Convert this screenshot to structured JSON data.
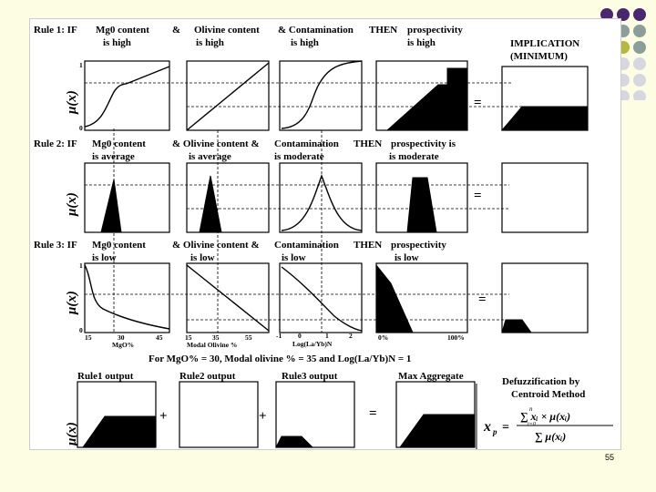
{
  "rules": [
    {
      "label": "Rule 1: IF",
      "a": [
        "Mg0 content",
        "is high"
      ],
      "b_amp": "&",
      "b": [
        "Olivine content",
        "is high"
      ],
      "c": [
        "& Contamination",
        "is high"
      ],
      "then": "THEN",
      "d": [
        "prospectivity",
        "is high"
      ]
    },
    {
      "label": "Rule 2: IF",
      "a": [
        "Mg0 content",
        "is average"
      ],
      "b": [
        "& Olivine content &",
        "is average"
      ],
      "c": [
        "Contamination",
        "is moderate"
      ],
      "then": "THEN",
      "d": [
        "prospectivity is",
        "is moderate"
      ]
    },
    {
      "label": "Rule 3: IF",
      "a": [
        "Mg0 content",
        "is low"
      ],
      "b": [
        "& Olivine content &",
        "is low"
      ],
      "c": [
        "Contamination",
        "is low"
      ],
      "then": "THEN",
      "d": [
        "prospectivity",
        "is low"
      ]
    }
  ],
  "implication": [
    "IMPLICATION",
    "(MINIMUM)"
  ],
  "mu": "μ(x)",
  "axis": {
    "y_top": "1",
    "y_bottom": "0",
    "mgo_ticks": [
      "15",
      "30",
      "45"
    ],
    "mgo_label": "MgO%",
    "olv_ticks": [
      "15",
      "35",
      "55"
    ],
    "olv_label": "Modal Olivine %",
    "lay_ticks": [
      "-1",
      "0",
      "1",
      "2"
    ],
    "lay_label": "Log(La/Yb)N",
    "pr_ticks": [
      "0%",
      "100%"
    ]
  },
  "condition": "For MgO% = 30, Modal olivine % = 35 and Log(La/Yb)N = 1",
  "outputs": [
    "Rule1 output",
    "Rule2 output",
    "Rule3 output",
    "Max Aggregate"
  ],
  "defuzz": [
    "Defuzzification by",
    "Centroid Method"
  ],
  "formula": {
    "lhs": "x",
    "lhs_sub": "p",
    "eq": "=",
    "num": "∑ xᵢ × μ(xᵢ)",
    "den": "∑ μ(xᵢ)",
    "upper": "n",
    "lower": "i=0"
  },
  "ops": {
    "eq": "=",
    "plus": "+"
  },
  "page_number": "55",
  "colors": {
    "bg": "#fdfde3",
    "dot_purple": "#4b2770",
    "dot_olive": "#b5b83a",
    "dot_gray": "#8a9e9a",
    "dot_light": "#d7d7e2"
  }
}
